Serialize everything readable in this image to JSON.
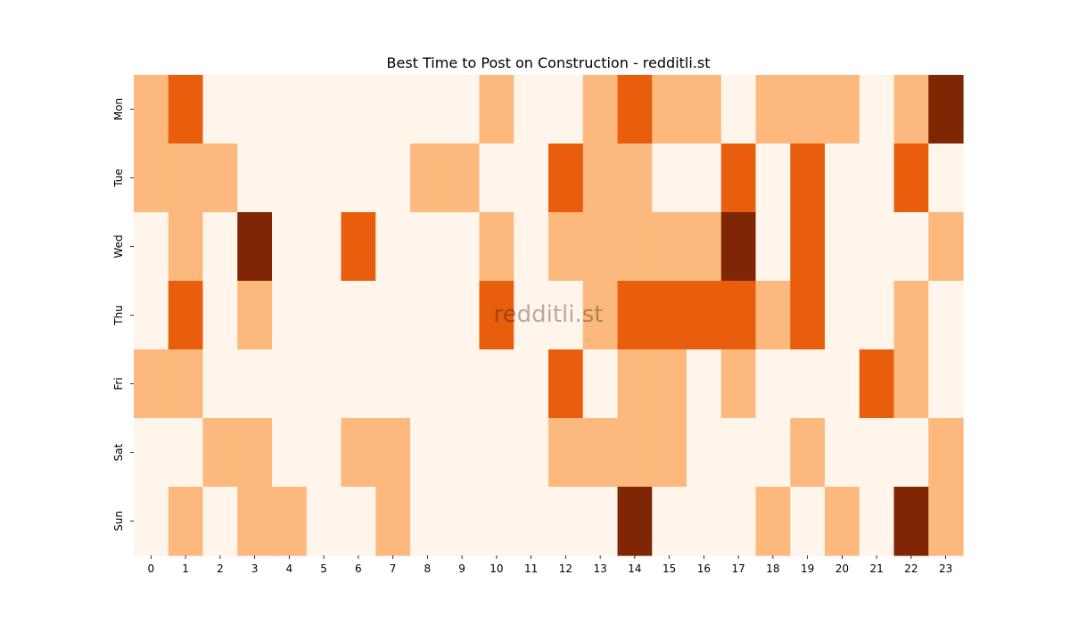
{
  "chart_data": {
    "type": "heatmap",
    "title": "Best Time to Post on Construction - redditli.st",
    "watermark": "redditli.st",
    "x_categories": [
      "0",
      "1",
      "2",
      "3",
      "4",
      "5",
      "6",
      "7",
      "8",
      "9",
      "10",
      "11",
      "12",
      "13",
      "14",
      "15",
      "16",
      "17",
      "18",
      "19",
      "20",
      "21",
      "22",
      "23"
    ],
    "y_categories": [
      "Mon",
      "Tue",
      "Wed",
      "Thu",
      "Fri",
      "Sat",
      "Sun"
    ],
    "values": [
      [
        1,
        2,
        0,
        0,
        0,
        0,
        0,
        0,
        0,
        0,
        1,
        0,
        0,
        1,
        2,
        1,
        1,
        0,
        1,
        1,
        1,
        0,
        1,
        3
      ],
      [
        1,
        1,
        1,
        0,
        0,
        0,
        0,
        0,
        1,
        1,
        0,
        0,
        2,
        1,
        1,
        0,
        0,
        2,
        0,
        2,
        0,
        0,
        2,
        0
      ],
      [
        0,
        1,
        0,
        3,
        0,
        0,
        2,
        0,
        0,
        0,
        1,
        0,
        1,
        1,
        1,
        1,
        1,
        3,
        0,
        2,
        0,
        0,
        0,
        1
      ],
      [
        0,
        2,
        0,
        1,
        0,
        0,
        0,
        0,
        0,
        0,
        2,
        0,
        0,
        1,
        2,
        2,
        2,
        2,
        1,
        2,
        0,
        0,
        1,
        0
      ],
      [
        1,
        1,
        0,
        0,
        0,
        0,
        0,
        0,
        0,
        0,
        0,
        0,
        2,
        0,
        1,
        1,
        0,
        1,
        0,
        0,
        0,
        2,
        1,
        0
      ],
      [
        0,
        0,
        1,
        1,
        0,
        0,
        1,
        1,
        0,
        0,
        0,
        0,
        1,
        1,
        1,
        1,
        0,
        0,
        0,
        1,
        0,
        0,
        0,
        1
      ],
      [
        0,
        1,
        0,
        1,
        1,
        0,
        0,
        1,
        0,
        0,
        0,
        0,
        0,
        0,
        3,
        0,
        0,
        0,
        1,
        0,
        1,
        0,
        3,
        1
      ]
    ],
    "color_scale": [
      "#fff5eb",
      "#fdb97d",
      "#e95e0d",
      "#7f2704"
    ],
    "grid": false,
    "legend": "none"
  }
}
